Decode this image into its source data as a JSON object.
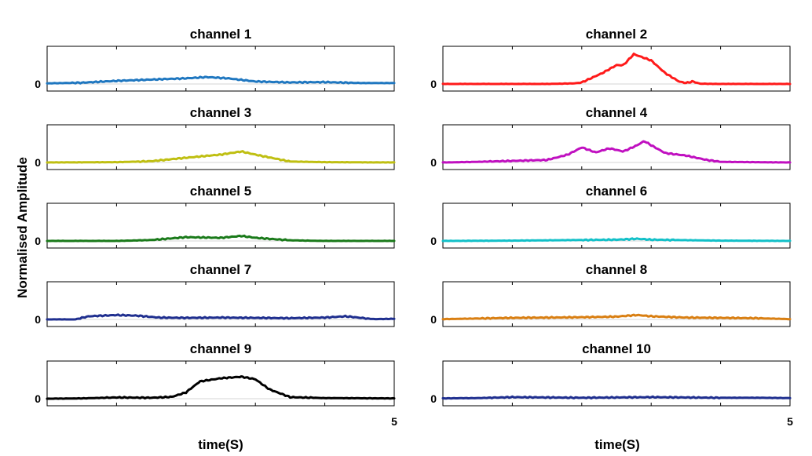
{
  "ylabel": "Normalised  Amplitude",
  "xlabels": [
    "time(S)",
    "time(S)"
  ],
  "chart_data": {
    "type": "line",
    "ylabel": "Normalised  Amplitude",
    "xlabel": "time(S)",
    "xlim": [
      0,
      5
    ],
    "ylim": [
      0,
      1.1
    ],
    "x_tick_labels": [
      "5"
    ],
    "y_tick_labels": [
      "0"
    ],
    "grid": false,
    "panels": [
      {
        "title": "channel 1",
        "color": "#1f77c0",
        "x": [
          0,
          0.5,
          1,
          1.5,
          2,
          2.3,
          2.6,
          3,
          3.5,
          4,
          4.5,
          5
        ],
        "values": [
          0.02,
          0.04,
          0.1,
          0.14,
          0.18,
          0.22,
          0.18,
          0.08,
          0.05,
          0.06,
          0.03,
          0.03
        ]
      },
      {
        "title": "channel 2",
        "color": "#ff1a1a",
        "x": [
          0,
          1,
          1.5,
          1.9,
          2,
          2.3,
          2.5,
          2.6,
          2.75,
          3,
          3.2,
          3.4,
          3.5,
          3.6,
          3.7,
          4,
          5
        ],
        "values": [
          0,
          0,
          0,
          0.02,
          0.05,
          0.35,
          0.6,
          0.6,
          0.95,
          0.75,
          0.35,
          0.08,
          0.03,
          0.08,
          0.01,
          0,
          0
        ]
      },
      {
        "title": "channel 3",
        "color": "#bfbf12",
        "x": [
          0,
          1,
          1.5,
          2,
          2.5,
          2.8,
          3,
          3.5,
          4,
          5
        ],
        "values": [
          0,
          0.01,
          0.04,
          0.15,
          0.25,
          0.35,
          0.25,
          0.03,
          0.01,
          0
        ]
      },
      {
        "title": "channel 4",
        "color": "#c010c0",
        "x": [
          0,
          0.5,
          1,
          1.5,
          1.8,
          2,
          2.2,
          2.4,
          2.6,
          2.8,
          2.9,
          3,
          3.2,
          3.5,
          3.8,
          4,
          5
        ],
        "values": [
          0,
          0.02,
          0.05,
          0.08,
          0.25,
          0.48,
          0.32,
          0.45,
          0.35,
          0.55,
          0.68,
          0.55,
          0.3,
          0.22,
          0.08,
          0.02,
          0
        ]
      },
      {
        "title": "channel 5",
        "color": "#1a7a1a",
        "x": [
          0,
          1,
          1.5,
          2,
          2.5,
          2.8,
          3,
          3.5,
          4,
          5
        ],
        "values": [
          0,
          0,
          0.03,
          0.12,
          0.1,
          0.16,
          0.1,
          0.02,
          0,
          0
        ]
      },
      {
        "title": "channel 6",
        "color": "#12c0c8",
        "x": [
          0,
          1,
          2,
          2.5,
          2.8,
          3,
          4,
          5
        ],
        "values": [
          0,
          0.01,
          0.03,
          0.04,
          0.07,
          0.04,
          0.01,
          0
        ]
      },
      {
        "title": "channel 7",
        "color": "#1f2f8f",
        "x": [
          0,
          0.4,
          0.6,
          1,
          1.3,
          1.6,
          2,
          2.5,
          3,
          3.5,
          4,
          4.3,
          4.7,
          5
        ],
        "values": [
          0,
          0,
          0.1,
          0.14,
          0.12,
          0.06,
          0.05,
          0.06,
          0.05,
          0.04,
          0.06,
          0.1,
          0.01,
          0.02
        ]
      },
      {
        "title": "channel 8",
        "color": "#d97f12",
        "x": [
          0,
          0.5,
          1,
          1.5,
          2,
          2.5,
          2.8,
          3,
          3.5,
          4,
          4.5,
          5
        ],
        "values": [
          0.01,
          0.03,
          0.05,
          0.06,
          0.07,
          0.09,
          0.14,
          0.1,
          0.06,
          0.05,
          0.04,
          0.01
        ]
      },
      {
        "title": "channel 9",
        "color": "#000000",
        "x": [
          0,
          0.5,
          1,
          1.5,
          1.8,
          2,
          2.2,
          2.5,
          2.8,
          3,
          3.2,
          3.5,
          4,
          5
        ],
        "values": [
          0,
          0.01,
          0.04,
          0.03,
          0.06,
          0.2,
          0.55,
          0.65,
          0.7,
          0.62,
          0.3,
          0.05,
          0.02,
          0.01
        ]
      },
      {
        "title": "channel 10",
        "color": "#1f2f8f",
        "x": [
          0,
          0.5,
          1,
          1.5,
          2,
          2.5,
          3,
          3.5,
          4,
          4.5,
          5
        ],
        "values": [
          0.01,
          0.02,
          0.05,
          0.04,
          0.03,
          0.04,
          0.05,
          0.04,
          0.03,
          0.03,
          0.02
        ]
      }
    ]
  }
}
